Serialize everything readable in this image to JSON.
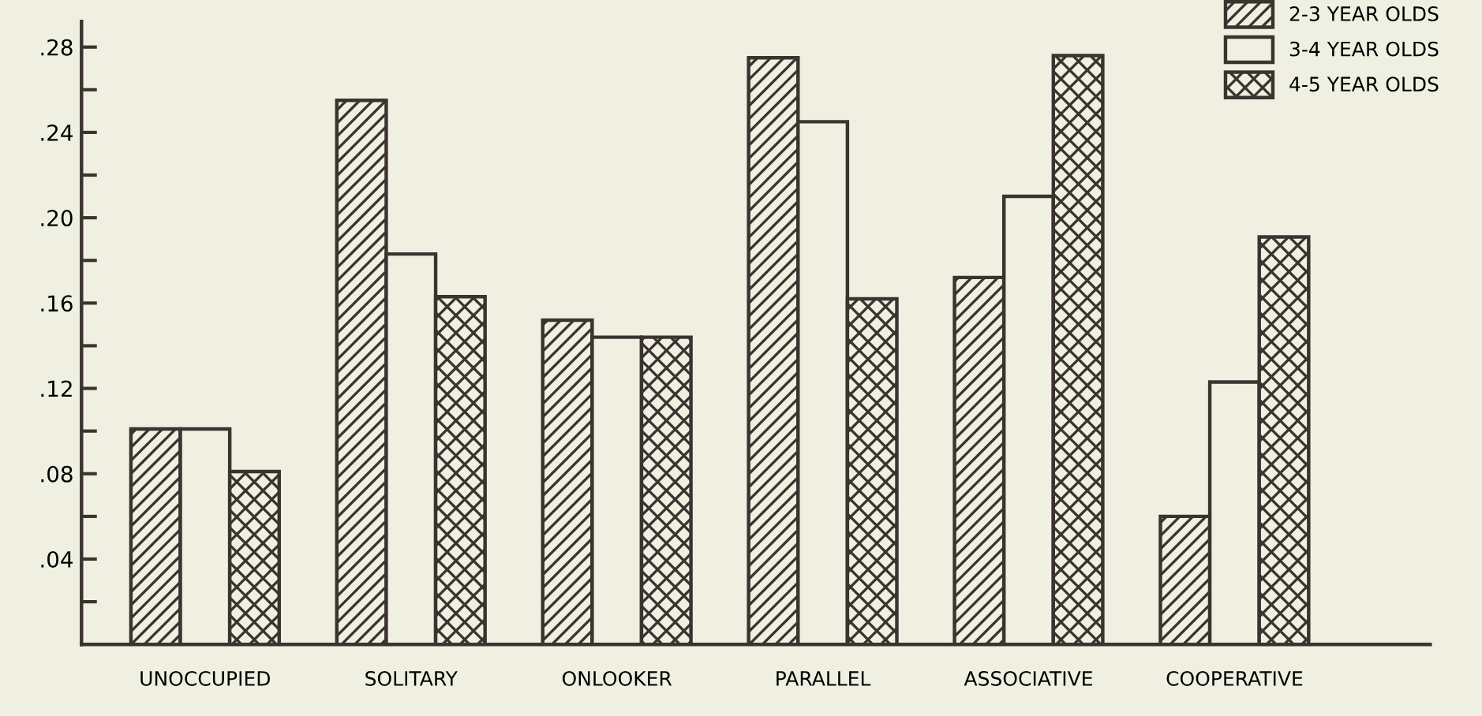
{
  "chart_data": {
    "type": "bar",
    "categories": [
      "UNOCCUPIED",
      "SOLITARY",
      "ONLOOKER",
      "PARALLEL",
      "ASSOCIATIVE",
      "COOPERATIVE"
    ],
    "series": [
      {
        "name": "2-3 YEAR OLDS",
        "color": "#3b3330",
        "values": [
          0.101,
          0.255,
          0.152,
          0.275,
          0.172,
          0.06
        ]
      },
      {
        "name": "3-4 YEAR OLDS",
        "color": "#3b3330",
        "values": [
          0.101,
          0.183,
          0.144,
          0.245,
          0.21,
          0.123
        ]
      },
      {
        "name": "4-5 YEAR OLDS",
        "color": "#3b3330",
        "values": [
          0.081,
          0.163,
          0.144,
          0.162,
          0.276,
          0.191
        ]
      }
    ],
    "ylim": [
      0,
      0.292
    ],
    "yticks": [
      {
        "value": 0.02,
        "label": null
      },
      {
        "value": 0.04,
        "label": ".04"
      },
      {
        "value": 0.06,
        "label": null
      },
      {
        "value": 0.08,
        "label": ".08"
      },
      {
        "value": 0.1,
        "label": null
      },
      {
        "value": 0.12,
        "label": ".12"
      },
      {
        "value": 0.14,
        "label": null
      },
      {
        "value": 0.16,
        "label": ".16"
      },
      {
        "value": 0.18,
        "label": null
      },
      {
        "value": 0.2,
        "label": ".20"
      },
      {
        "value": 0.22,
        "label": null
      },
      {
        "value": 0.24,
        "label": ".24"
      },
      {
        "value": 0.26,
        "label": null
      },
      {
        "value": 0.28,
        "label": ".28"
      }
    ],
    "grid": false,
    "legend": "top right"
  }
}
